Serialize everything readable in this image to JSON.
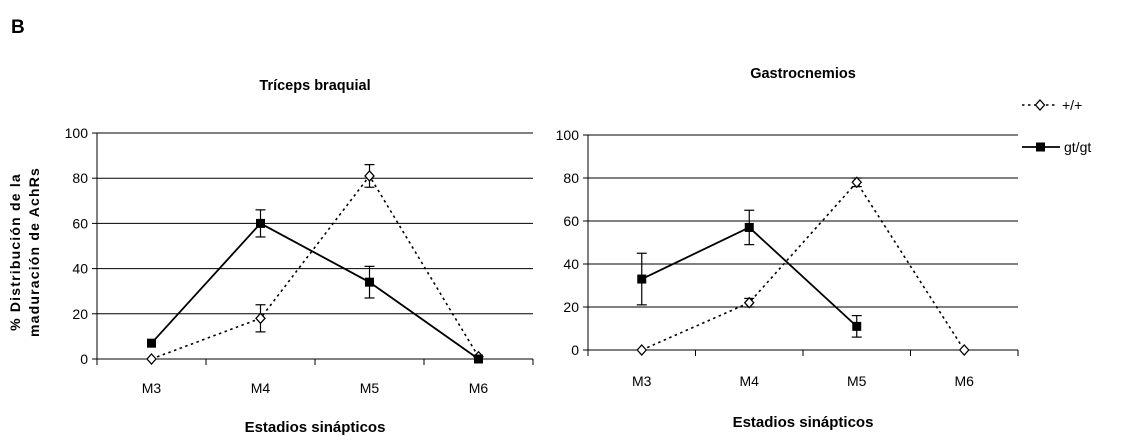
{
  "figure": {
    "panel_label": "B",
    "ylabel_line1": "% Distribución de la",
    "ylabel_line2": "maduración de AchRs"
  },
  "legend": [
    {
      "label": "+/+",
      "style": "dotted",
      "marker": "open-diamond"
    },
    {
      "label": "gt/gt",
      "style": "solid",
      "marker": "filled-square"
    }
  ],
  "colors": {
    "line": "#000000",
    "grid": "#000000",
    "background": "#ffffff"
  },
  "chart_data": [
    {
      "type": "line",
      "title": "Tríceps braquial",
      "xlabel": "Estadios sinápticos",
      "ylabel": "% Distribución de la maduración de AchRs",
      "categories": [
        "M3",
        "M4",
        "M5",
        "M6"
      ],
      "ylim": [
        0,
        100
      ],
      "yticks": [
        0,
        20,
        40,
        60,
        80,
        100
      ],
      "grid": true,
      "series": [
        {
          "name": "+/+",
          "values": [
            0,
            18,
            81,
            1
          ],
          "errors": [
            0,
            6,
            5,
            0
          ],
          "line": "dotted",
          "marker": "open-diamond"
        },
        {
          "name": "gt/gt",
          "values": [
            7,
            60,
            34,
            0
          ],
          "errors": [
            0,
            6,
            7,
            0
          ],
          "line": "solid",
          "marker": "filled-square"
        }
      ]
    },
    {
      "type": "line",
      "title": "Gastrocnemios",
      "xlabel": "Estadios sinápticos",
      "ylabel": "",
      "categories": [
        "M3",
        "M4",
        "M5",
        "M6"
      ],
      "ylim": [
        0,
        100
      ],
      "yticks": [
        0,
        20,
        40,
        60,
        80,
        100
      ],
      "grid": true,
      "series": [
        {
          "name": "+/+",
          "values": [
            0,
            22,
            78,
            0
          ],
          "errors": [
            0,
            2,
            2,
            0
          ],
          "line": "dotted",
          "marker": "open-diamond"
        },
        {
          "name": "gt/gt",
          "values": [
            33,
            57,
            11,
            null
          ],
          "errors": [
            12,
            8,
            5,
            0
          ],
          "line": "solid",
          "marker": "filled-square"
        }
      ]
    }
  ]
}
